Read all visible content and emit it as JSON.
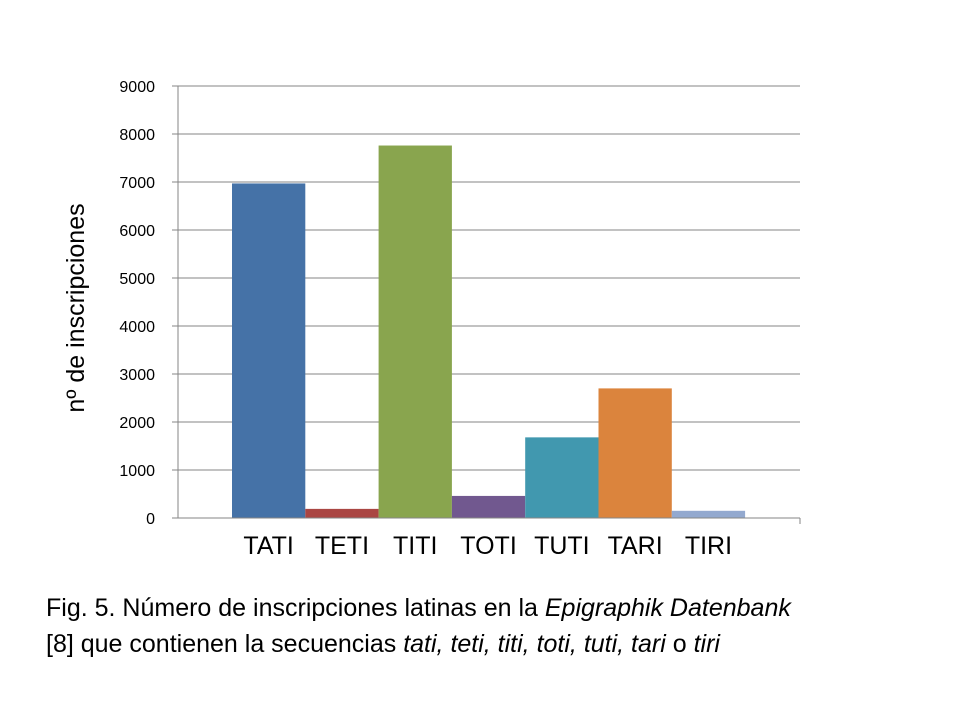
{
  "chart_data": {
    "type": "bar",
    "categories": [
      "TATI",
      "TETI",
      "TITI",
      "TOTI",
      "TUTI",
      "TARI",
      "TIRI"
    ],
    "values": [
      6970,
      190,
      7760,
      460,
      1680,
      2700,
      150
    ],
    "colors": [
      "#4572A7",
      "#AA4643",
      "#89A54E",
      "#71588F",
      "#4198AF",
      "#DB843D",
      "#93A9CF"
    ],
    "ylabel": "nº de inscripciones",
    "ylim": [
      0,
      9000
    ],
    "yticks": [
      0,
      1000,
      2000,
      3000,
      4000,
      5000,
      6000,
      7000,
      8000,
      9000
    ],
    "grid": true,
    "gridColor": "#868686"
  },
  "caption": {
    "line1_prefix": "Fig. 5. Número de inscripciones latinas en la ",
    "line1_italic": "Epigraphik Datenbank",
    "line2_prefix": "[8] que contienen la secuencias ",
    "line2_italic": "tati, teti, titi, toti, tuti, tari",
    "line2_mid": " o ",
    "line2_italic_end": "tiri"
  }
}
